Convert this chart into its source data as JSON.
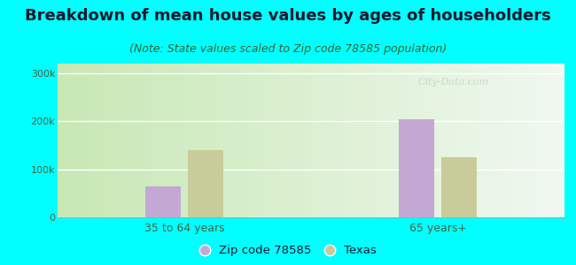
{
  "title": "Breakdown of mean house values by ages of householders",
  "subtitle": "(Note: State values scaled to Zip code 78585 population)",
  "groups": [
    "35 to 64 years",
    "65 years+"
  ],
  "series": [
    {
      "label": "Zip code 78585",
      "color": "#c4a8d4",
      "values": [
        65000,
        205000
      ]
    },
    {
      "label": "Texas",
      "color": "#c8cc9a",
      "values": [
        140000,
        125000
      ]
    }
  ],
  "ylim": [
    0,
    320000
  ],
  "yticks": [
    0,
    100000,
    200000,
    300000
  ],
  "ytick_labels": [
    "0",
    "100k",
    "200k",
    "300k"
  ],
  "background_color": "#00ffff",
  "grad_left": "#c8e8b4",
  "grad_right": "#f0f8f0",
  "title_fontsize": 13,
  "subtitle_fontsize": 9,
  "bar_width": 0.28,
  "watermark": "City-Data.com",
  "watermark_color": "#c0d8c0",
  "legend_marker_color_1": "#c4a8d4",
  "legend_marker_color_2": "#c8cc9a"
}
